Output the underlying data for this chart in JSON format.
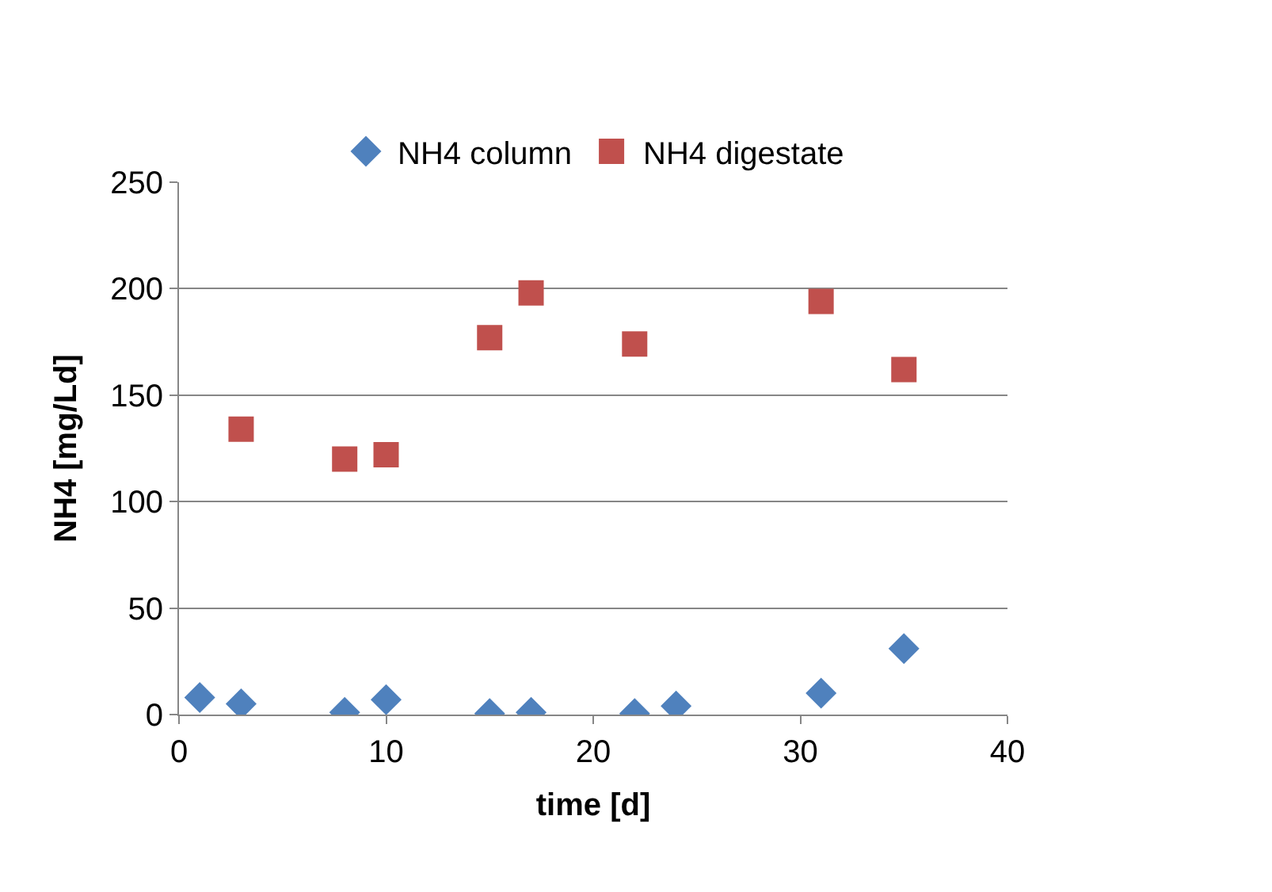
{
  "chart_data": {
    "type": "scatter",
    "xlabel": "time [d]",
    "ylabel": "NH4 [mg/Ld]",
    "series": [
      {
        "name": "NH4 column",
        "color": "#4f81bd",
        "marker": "diamond",
        "x": [
          1,
          3,
          8,
          10,
          15,
          17,
          22,
          24,
          31,
          35
        ],
        "values": [
          8,
          5,
          1,
          7,
          0.5,
          1,
          0.5,
          4,
          10,
          31
        ]
      },
      {
        "name": "NH4 digestate",
        "color": "#c0504d",
        "marker": "square",
        "x": [
          3,
          8,
          10,
          15,
          17,
          22,
          31,
          35
        ],
        "values": [
          134,
          120,
          122,
          177,
          198,
          174,
          194,
          162
        ]
      }
    ],
    "xlim": [
      0,
      40
    ],
    "xticks": [
      0,
      10,
      20,
      30,
      40
    ],
    "ylim": [
      0,
      250
    ],
    "yticks": [
      0,
      50,
      100,
      150,
      200,
      250
    ],
    "grid": "y",
    "legend": "top"
  }
}
